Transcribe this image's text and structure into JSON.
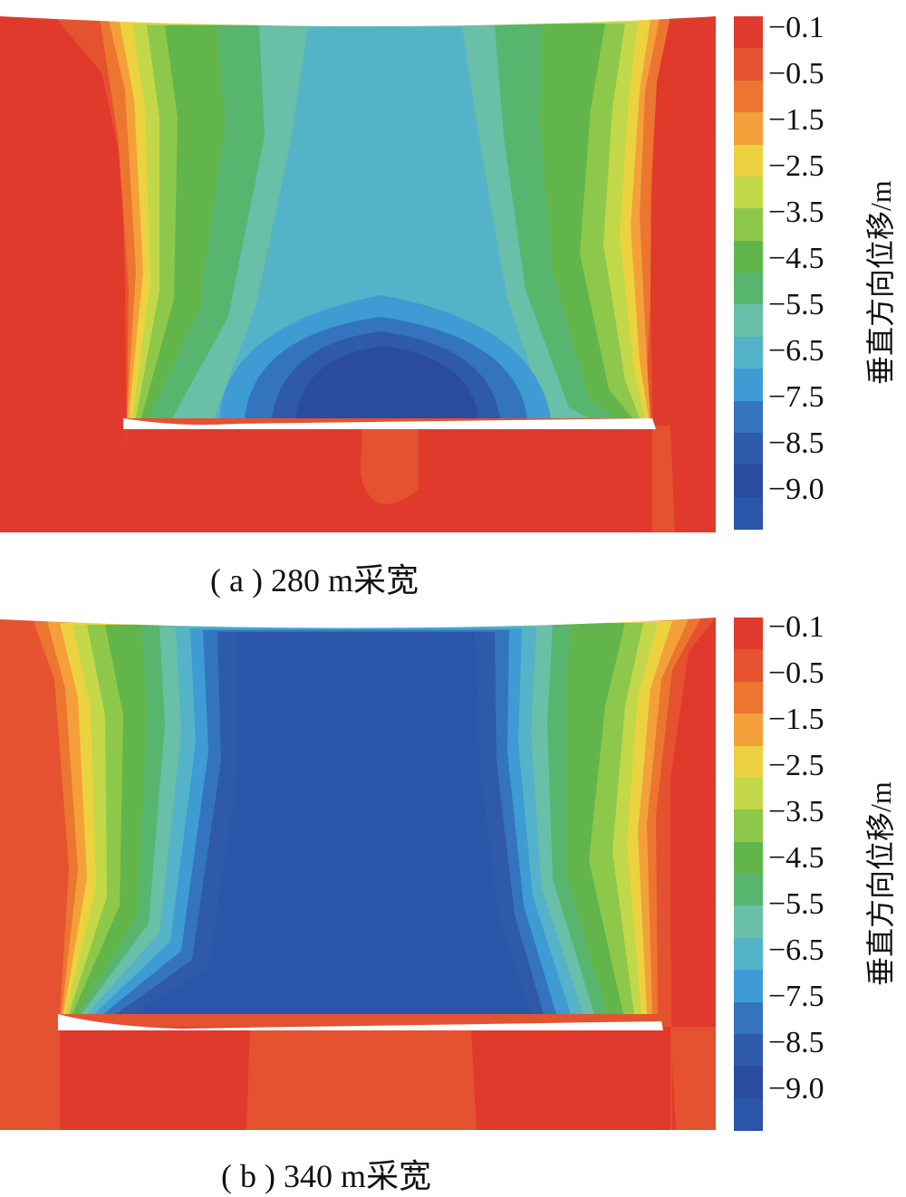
{
  "chart_data": [
    {
      "type": "heatmap",
      "caption": "( a ) 280 m采宽",
      "colorbar": {
        "label": "垂直方向位移/m",
        "ticks": [
          "−0.1",
          "−0.5",
          "−1.5",
          "−2.5",
          "−3.5",
          "−4.5",
          "−5.5",
          "−6.5",
          "−7.5",
          "−8.5",
          "−9.0"
        ],
        "colors": [
          "#e03a2c",
          "#e5522f",
          "#ec7530",
          "#f3a03a",
          "#ecd23f",
          "#c3d849",
          "#8ec84b",
          "#62b54b",
          "#58b56d",
          "#69bfa8",
          "#54b3c8",
          "#3e9bd4",
          "#3474bf",
          "#2f5aa9",
          "#2a4c9e",
          "#2a55a8"
        ]
      },
      "max_subsidence_m": -9.0,
      "mining_width_m": 280
    },
    {
      "type": "heatmap",
      "caption": "( b ) 340 m采宽",
      "colorbar": {
        "label": "垂直方向位移/m",
        "ticks": [
          "−0.1",
          "−0.5",
          "−1.5",
          "−2.5",
          "−3.5",
          "−4.5",
          "−5.5",
          "−6.5",
          "−7.5",
          "−8.5",
          "−9.0"
        ],
        "colors": [
          "#e03a2c",
          "#e5522f",
          "#ec7530",
          "#f3a03a",
          "#ecd23f",
          "#c3d849",
          "#8ec84b",
          "#62b54b",
          "#58b56d",
          "#69bfa8",
          "#54b3c8",
          "#3e9bd4",
          "#3474bf",
          "#2f5aa9",
          "#2a4c9e",
          "#2a55a8"
        ]
      },
      "max_subsidence_m": -9.0,
      "mining_width_m": 340
    }
  ]
}
